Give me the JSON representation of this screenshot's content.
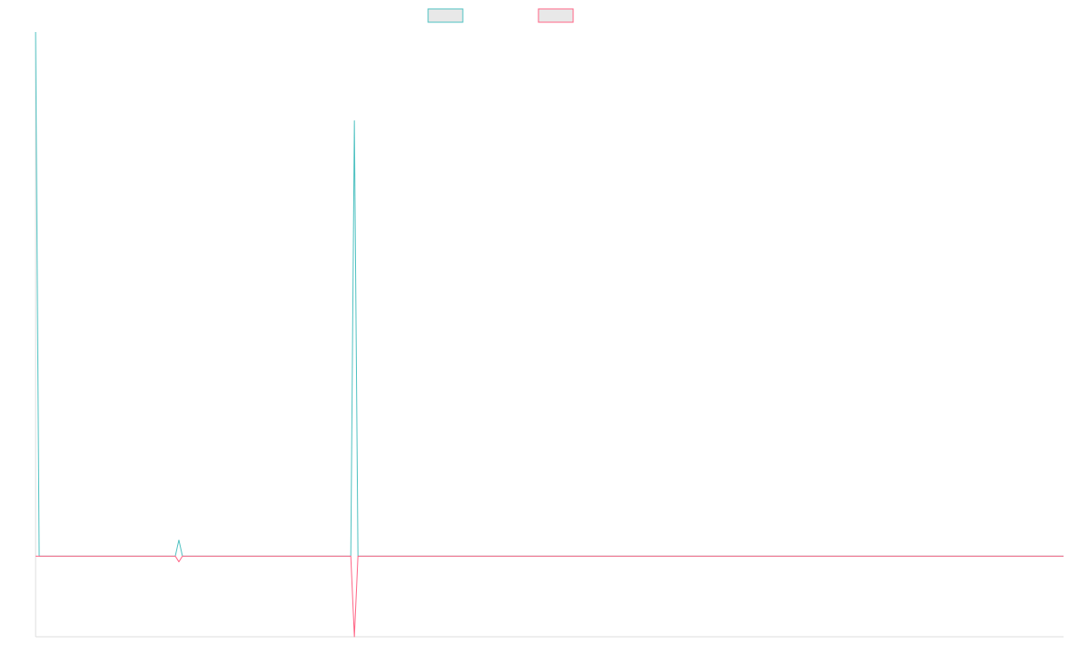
{
  "chart_data": {
    "type": "line",
    "title": "",
    "xlabel": "",
    "ylabel": "",
    "x": [
      0,
      1,
      2,
      3,
      4,
      5,
      6,
      7,
      8,
      9,
      10,
      11,
      12,
      13,
      14,
      15,
      16,
      17,
      18,
      19,
      20,
      21,
      22,
      23,
      24,
      25,
      26,
      27,
      28,
      29,
      30,
      31,
      32,
      33,
      34,
      35,
      36,
      37,
      38,
      39,
      40,
      41,
      42,
      43,
      44,
      45,
      46,
      47,
      48,
      49,
      50,
      51,
      52,
      53,
      54,
      55,
      56,
      57,
      58,
      59,
      60,
      61,
      62,
      63,
      64,
      65,
      66,
      67,
      68,
      69,
      70,
      71,
      72,
      73,
      74,
      75,
      76,
      77,
      78,
      79,
      80,
      81,
      82,
      83,
      84,
      85,
      86,
      87,
      88,
      89,
      90,
      91,
      92,
      93,
      94,
      95,
      96,
      97,
      98,
      99,
      100,
      101,
      102,
      103,
      104,
      105,
      106,
      107,
      108,
      109,
      110,
      111,
      112,
      113,
      114,
      115,
      116,
      117,
      118,
      119,
      120,
      121,
      122,
      123,
      124,
      125,
      126,
      127,
      128,
      129,
      130,
      131,
      132,
      133,
      134,
      135,
      136,
      137,
      138,
      139,
      140,
      141,
      142,
      143,
      144,
      145,
      146,
      147,
      148,
      149,
      150,
      151,
      152,
      153,
      154,
      155,
      156,
      157,
      158,
      159,
      160,
      161,
      162,
      163,
      164,
      165,
      166,
      167,
      168,
      169,
      170,
      171,
      172,
      173,
      174,
      175,
      176,
      177,
      178,
      179,
      180,
      181,
      182,
      183,
      184,
      185,
      186,
      187,
      188,
      189,
      190,
      191,
      192,
      193,
      194,
      195,
      196,
      197,
      198,
      199,
      200,
      201,
      202,
      203,
      204,
      205,
      206,
      207,
      208,
      209,
      210,
      211,
      212,
      213,
      214,
      215,
      216,
      217,
      218,
      219,
      220,
      221,
      222,
      223,
      224,
      225,
      226,
      227,
      228,
      229,
      230,
      231,
      232,
      233,
      234,
      235,
      236,
      237,
      238,
      239,
      240,
      241,
      242,
      243,
      244,
      245,
      246,
      247,
      248,
      249,
      250,
      251,
      252,
      253,
      254,
      255,
      256,
      257,
      258,
      259,
      260,
      261,
      262,
      263,
      264,
      265,
      266,
      267,
      268,
      269,
      270,
      271,
      272,
      273,
      274,
      275,
      276,
      277,
      278,
      279,
      280,
      281,
      282,
      283,
      284,
      285,
      286,
      287
    ],
    "ylim": [
      -100,
      650
    ],
    "legend_position": "top-center",
    "grid": false,
    "series": [
      {
        "name": "",
        "color": "#4bc0c0",
        "points": [
          [
            0,
            650
          ],
          [
            1,
            0
          ],
          [
            39,
            0
          ],
          [
            40,
            20
          ],
          [
            41,
            0
          ],
          [
            88,
            0
          ],
          [
            89,
            540
          ],
          [
            90,
            0
          ],
          [
            287,
            0
          ]
        ]
      },
      {
        "name": "",
        "color": "#ff6384",
        "points": [
          [
            0,
            0
          ],
          [
            39,
            0
          ],
          [
            40,
            -7
          ],
          [
            41,
            0
          ],
          [
            88,
            0
          ],
          [
            89,
            -100
          ],
          [
            90,
            0
          ],
          [
            287,
            0
          ]
        ]
      }
    ]
  }
}
